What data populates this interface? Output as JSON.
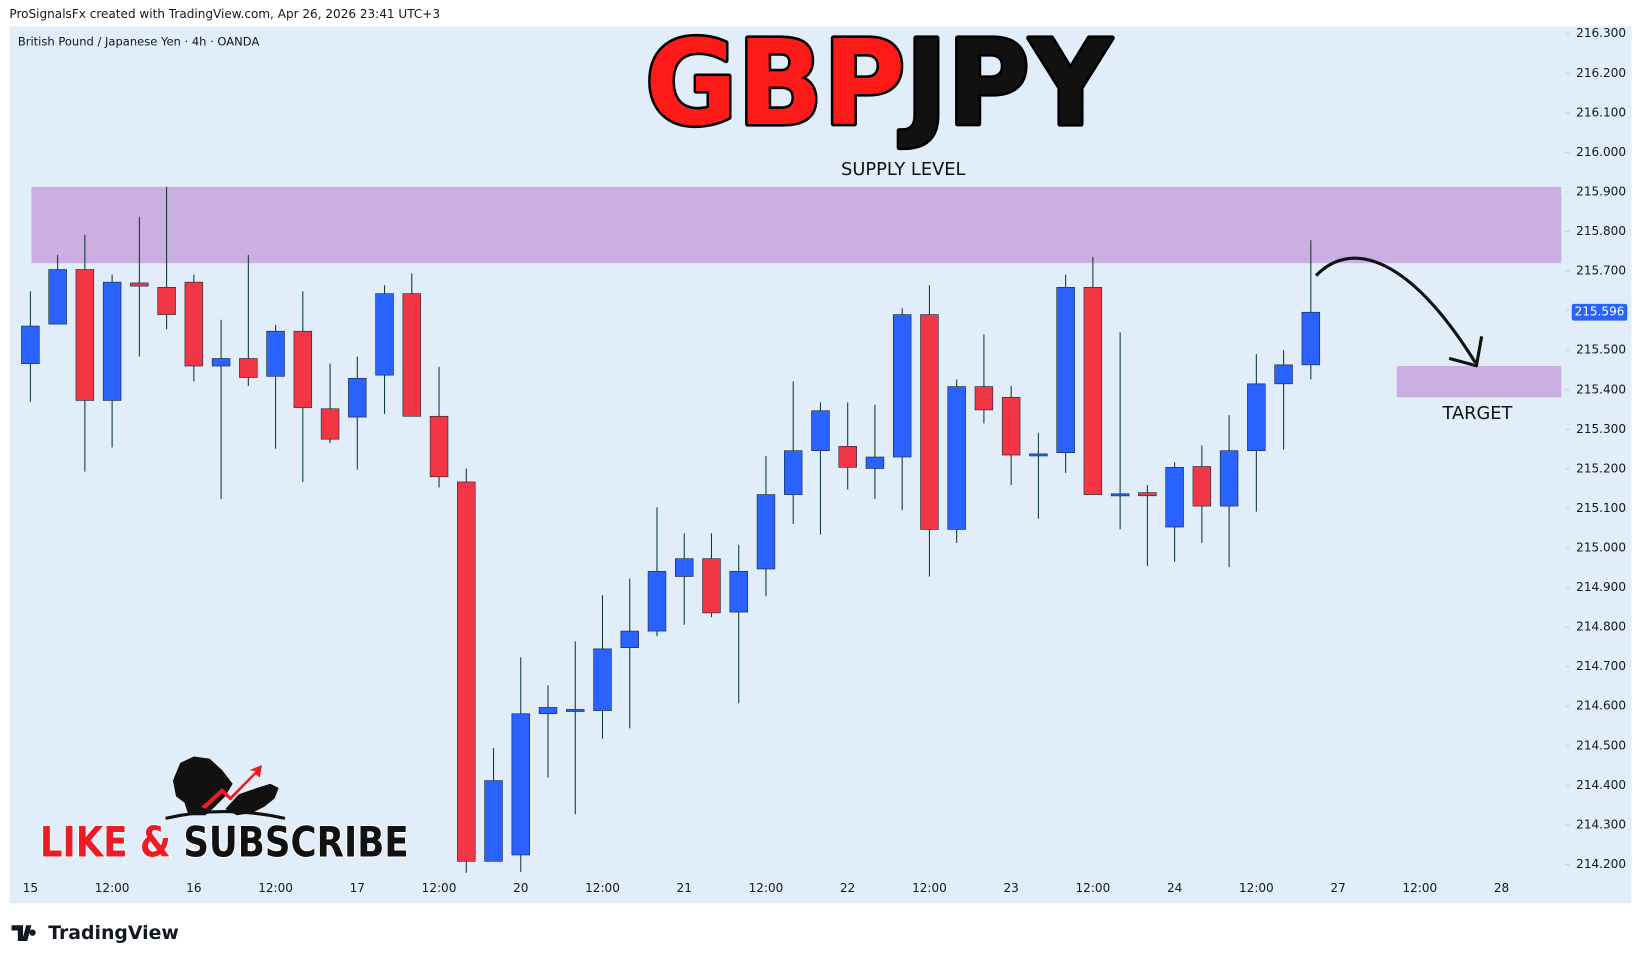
{
  "header": "ProSignalsFx created with TradingView.com, Apr 26, 2026 23:41 UTC+3",
  "footer": "TradingView",
  "call_to_action": [
    {
      "text": "LIKE &",
      "color": "#ec1c24"
    },
    {
      "text": "SUBSCRIBE",
      "color": "#111111"
    }
  ],
  "chart_data": {
    "type": "candlestick",
    "title": [
      {
        "text": "GBP",
        "color": "#ff1a1a"
      },
      {
        "text": "JPY",
        "color": "#111111"
      }
    ],
    "subtitle": "British Pound / Japanese Yen · 4h · OANDA",
    "categories": [
      "15",
      null,
      null,
      "12:00",
      null,
      null,
      "16",
      null,
      null,
      "12:00",
      null,
      null,
      "17",
      null,
      null,
      "12:00",
      null,
      null,
      "20",
      null,
      null,
      "12:00",
      null,
      null,
      "21",
      null,
      null,
      "12:00",
      null,
      null,
      "22",
      null,
      null,
      "12:00",
      null,
      null,
      "23",
      null,
      null,
      "12:00",
      null,
      null,
      "24",
      null,
      null,
      "12:00",
      null,
      null,
      "27",
      null,
      null,
      "12:00",
      null,
      null,
      "28",
      null
    ],
    "open": [
      215.466,
      215.566,
      215.704,
      215.373,
      215.67,
      215.659,
      215.672,
      215.46,
      215.479,
      215.434,
      215.548,
      215.352,
      215.331,
      215.437,
      215.643,
      215.333,
      215.167,
      214.208,
      214.224,
      214.581,
      214.587,
      214.589,
      214.748,
      214.79,
      214.928,
      214.973,
      214.838,
      214.947,
      215.135,
      215.246,
      215.257,
      215.201,
      215.23,
      215.59,
      215.047,
      215.408,
      215.381,
      215.235,
      215.241,
      215.659,
      215.135,
      215.14,
      215.053,
      215.206,
      215.106,
      215.246,
      215.415,
      215.463,
      null,
      null,
      null,
      null,
      null,
      null,
      null,
      null
    ],
    "high": [
      215.649,
      215.741,
      215.792,
      215.691,
      215.837,
      215.913,
      215.691,
      215.577,
      215.741,
      215.564,
      215.649,
      215.466,
      215.484,
      215.664,
      215.694,
      215.458,
      215.201,
      214.494,
      214.724,
      214.653,
      214.764,
      214.881,
      214.923,
      215.103,
      215.037,
      215.037,
      215.008,
      215.233,
      215.421,
      215.368,
      215.368,
      215.362,
      215.606,
      215.664,
      215.426,
      215.54,
      215.41,
      215.291,
      215.691,
      215.736,
      215.545,
      215.159,
      215.217,
      215.259,
      215.336,
      215.49,
      215.5,
      215.778,
      null,
      null,
      null,
      null,
      null,
      null,
      null,
      null
    ],
    "low": [
      215.37,
      215.566,
      215.193,
      215.254,
      215.484,
      215.553,
      215.421,
      215.124,
      215.41,
      215.251,
      215.167,
      215.265,
      215.198,
      215.339,
      215.333,
      215.153,
      214.179,
      214.208,
      214.181,
      214.42,
      214.327,
      214.518,
      214.544,
      214.777,
      214.806,
      214.825,
      214.608,
      214.878,
      215.061,
      215.034,
      215.148,
      215.124,
      215.095,
      214.928,
      215.013,
      215.315,
      215.159,
      215.074,
      215.19,
      215.135,
      215.047,
      214.955,
      214.965,
      215.013,
      214.952,
      215.092,
      215.249,
      215.426,
      null,
      null,
      null,
      null,
      null,
      null,
      null,
      null
    ],
    "close": [
      215.561,
      215.704,
      215.373,
      215.672,
      215.662,
      215.59,
      215.46,
      215.479,
      215.431,
      215.548,
      215.355,
      215.275,
      215.429,
      215.643,
      215.333,
      215.18,
      214.208,
      214.412,
      214.581,
      214.597,
      214.592,
      214.745,
      214.79,
      214.941,
      214.973,
      214.836,
      214.941,
      215.135,
      215.246,
      215.347,
      215.204,
      215.23,
      215.59,
      215.047,
      215.408,
      215.349,
      215.235,
      215.238,
      215.659,
      215.135,
      215.137,
      215.132,
      215.204,
      215.106,
      215.246,
      215.415,
      215.463,
      215.596,
      null,
      null,
      null,
      null,
      null,
      null,
      null,
      null
    ],
    "up_color": "#2962ff",
    "down_color": "#f23645",
    "last_price": {
      "value": 215.596,
      "label": "215.596"
    },
    "zones": [
      {
        "label": "SUPPLY LEVEL",
        "top": 215.913,
        "bottom": 215.72,
        "color": "#cbaee2"
      },
      {
        "label": "TARGET",
        "top": 215.46,
        "bottom": 215.381,
        "color": "#cbaee2"
      }
    ],
    "ylim": [
      214.102,
      216.319
    ],
    "yticks": [
      {
        "value": 214.2,
        "label": "214.200"
      },
      {
        "value": 214.3,
        "label": "214.300"
      },
      {
        "value": 214.4,
        "label": "214.400"
      },
      {
        "value": 214.5,
        "label": "214.500"
      },
      {
        "value": 214.6,
        "label": "214.600"
      },
      {
        "value": 214.7,
        "label": "214.700"
      },
      {
        "value": 214.8,
        "label": "214.800"
      },
      {
        "value": 214.9,
        "label": "214.900"
      },
      {
        "value": 215.0,
        "label": "215.000"
      },
      {
        "value": 215.1,
        "label": "215.100"
      },
      {
        "value": 215.2,
        "label": "215.200"
      },
      {
        "value": 215.3,
        "label": "215.300"
      },
      {
        "value": 215.4,
        "label": "215.400"
      },
      {
        "value": 215.5,
        "label": "215.500"
      },
      {
        "value": 215.6,
        "label": "215.600"
      },
      {
        "value": 215.7,
        "label": "215.700"
      },
      {
        "value": 215.8,
        "label": "215.800"
      },
      {
        "value": 215.9,
        "label": "215.900"
      },
      {
        "value": 216.0,
        "label": "216.000"
      },
      {
        "value": 216.1,
        "label": "216.100"
      },
      {
        "value": 216.2,
        "label": "216.200"
      },
      {
        "value": 216.3,
        "label": "216.300"
      }
    ],
    "grid": false
  }
}
